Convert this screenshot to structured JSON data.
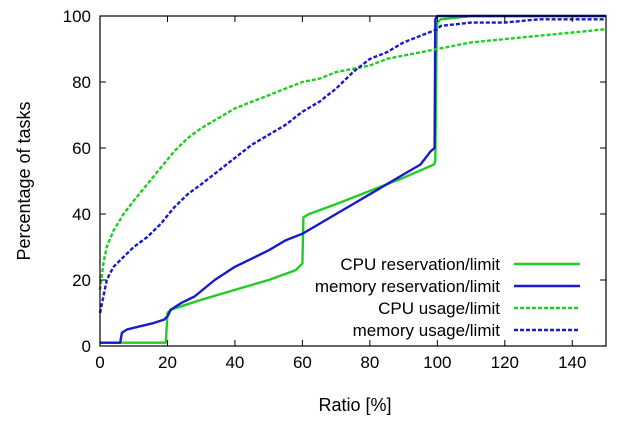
{
  "chart_data": {
    "type": "line",
    "title": "",
    "xlabel": "Ratio [%]",
    "ylabel": "Percentage of tasks",
    "xlim": [
      0,
      150
    ],
    "ylim": [
      0,
      100
    ],
    "x_ticks": [
      0,
      20,
      40,
      60,
      80,
      100,
      120,
      140
    ],
    "y_ticks": [
      0,
      20,
      40,
      60,
      80,
      100
    ],
    "grid": false,
    "legend_position": "bottom-right",
    "series": [
      {
        "name": "CPU reservation/limit",
        "color": "#22cc22",
        "style": "solid",
        "points": [
          [
            0,
            1
          ],
          [
            19.5,
            1
          ],
          [
            20,
            10
          ],
          [
            21,
            11
          ],
          [
            30,
            14
          ],
          [
            40,
            17
          ],
          [
            50,
            20
          ],
          [
            58,
            23
          ],
          [
            60,
            25
          ],
          [
            60.3,
            39
          ],
          [
            62,
            40
          ],
          [
            70,
            43
          ],
          [
            80,
            47
          ],
          [
            90,
            51
          ],
          [
            99,
            55
          ],
          [
            99.4,
            56
          ],
          [
            99.8,
            96
          ],
          [
            100,
            98
          ],
          [
            101,
            99
          ],
          [
            110,
            100
          ],
          [
            150,
            100
          ]
        ]
      },
      {
        "name": "memory reservation/limit",
        "color": "#1a1acc",
        "style": "solid",
        "points": [
          [
            0,
            1
          ],
          [
            6,
            1
          ],
          [
            6.5,
            4
          ],
          [
            8,
            5
          ],
          [
            12,
            6
          ],
          [
            16,
            7
          ],
          [
            19,
            8
          ],
          [
            20,
            9
          ],
          [
            21,
            11
          ],
          [
            24,
            13
          ],
          [
            28,
            15
          ],
          [
            34,
            20
          ],
          [
            40,
            24
          ],
          [
            46,
            27
          ],
          [
            50,
            29
          ],
          [
            55,
            32
          ],
          [
            60,
            34
          ],
          [
            65,
            37
          ],
          [
            70,
            40
          ],
          [
            75,
            43
          ],
          [
            80,
            46
          ],
          [
            85,
            49
          ],
          [
            90,
            52
          ],
          [
            95,
            55
          ],
          [
            98,
            59
          ],
          [
            99.2,
            60
          ],
          [
            99.4,
            99
          ],
          [
            100,
            100
          ],
          [
            150,
            100
          ]
        ]
      },
      {
        "name": "CPU usage/limit",
        "color": "#22cc22",
        "style": "dotted",
        "points": [
          [
            0,
            17
          ],
          [
            1,
            25
          ],
          [
            2,
            30
          ],
          [
            4,
            35
          ],
          [
            7,
            40
          ],
          [
            10,
            44
          ],
          [
            14,
            49
          ],
          [
            18,
            54
          ],
          [
            22,
            59
          ],
          [
            26,
            63
          ],
          [
            30,
            66
          ],
          [
            35,
            69
          ],
          [
            40,
            72
          ],
          [
            45,
            74
          ],
          [
            50,
            76
          ],
          [
            55,
            78
          ],
          [
            60,
            80
          ],
          [
            65,
            81
          ],
          [
            70,
            83
          ],
          [
            75,
            84
          ],
          [
            80,
            85
          ],
          [
            85,
            87
          ],
          [
            90,
            88
          ],
          [
            95,
            89
          ],
          [
            100,
            90
          ],
          [
            110,
            92
          ],
          [
            120,
            93
          ],
          [
            130,
            94
          ],
          [
            140,
            95
          ],
          [
            150,
            96
          ]
        ]
      },
      {
        "name": "memory usage/limit",
        "color": "#1a1acc",
        "style": "dotted",
        "points": [
          [
            0,
            10
          ],
          [
            1,
            15
          ],
          [
            2,
            20
          ],
          [
            4,
            24
          ],
          [
            7,
            27
          ],
          [
            10,
            30
          ],
          [
            14,
            33
          ],
          [
            18,
            37
          ],
          [
            22,
            42
          ],
          [
            26,
            46
          ],
          [
            30,
            49
          ],
          [
            35,
            53
          ],
          [
            40,
            57
          ],
          [
            45,
            61
          ],
          [
            50,
            64
          ],
          [
            55,
            67
          ],
          [
            60,
            71
          ],
          [
            65,
            74
          ],
          [
            70,
            78
          ],
          [
            75,
            83
          ],
          [
            80,
            87
          ],
          [
            85,
            89
          ],
          [
            90,
            92
          ],
          [
            95,
            94
          ],
          [
            100,
            96
          ],
          [
            101,
            97
          ],
          [
            110,
            98
          ],
          [
            120,
            98
          ],
          [
            130,
            99
          ],
          [
            140,
            99
          ],
          [
            150,
            99
          ]
        ]
      }
    ]
  }
}
